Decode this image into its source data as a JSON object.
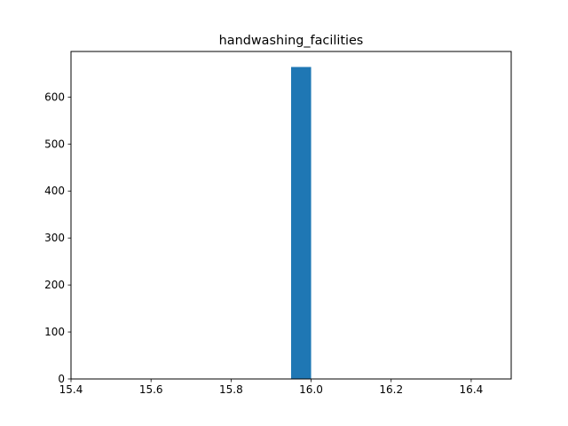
{
  "chart_data": {
    "type": "bar",
    "title": "handwashing_facilities",
    "xlabel": "",
    "ylabel": "",
    "xlim": [
      15.4,
      16.5
    ],
    "ylim": [
      0,
      697
    ],
    "x_ticks": [
      15.4,
      15.6,
      15.8,
      16.0,
      16.2,
      16.4
    ],
    "x_tick_labels": [
      "15.4",
      "15.6",
      "15.8",
      "16.0",
      "16.2",
      "16.4"
    ],
    "y_ticks": [
      0,
      100,
      200,
      300,
      400,
      500,
      600
    ],
    "y_tick_labels": [
      "0",
      "100",
      "200",
      "300",
      "400",
      "500",
      "600"
    ],
    "bins": [
      {
        "x_start": 15.95,
        "x_end": 16.0,
        "value": 664
      }
    ],
    "grid": false,
    "bar_color": "#1f77b4"
  }
}
